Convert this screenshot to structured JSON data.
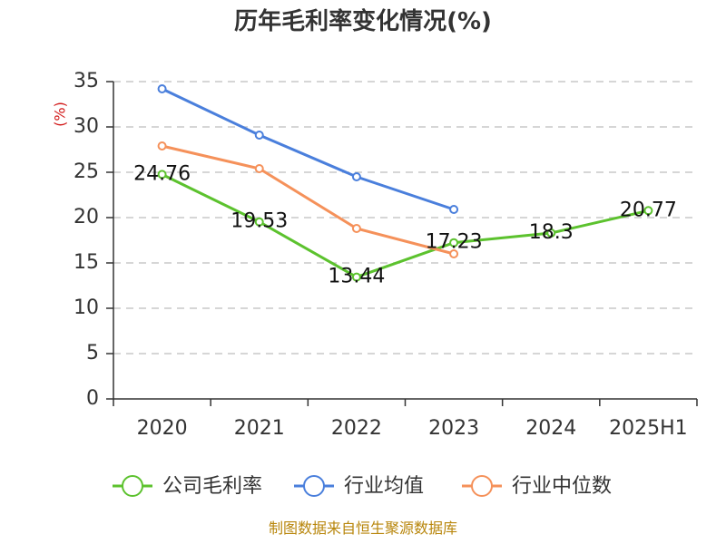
{
  "source_text": "制图数据来自恒生聚源数据库",
  "chart_data": {
    "type": "line",
    "title": "历年毛利率变化情况(%)",
    "xlabel": "",
    "ylabel": "(%)",
    "categories": [
      "2020",
      "2021",
      "2022",
      "2023",
      "2024",
      "2025H1"
    ],
    "ylim": [
      0,
      35
    ],
    "yticks": [
      0,
      5,
      10,
      15,
      20,
      25,
      30,
      35
    ],
    "grid": true,
    "legend_position": "bottom",
    "series": [
      {
        "name": "公司毛利率",
        "color": "#5cc22e",
        "values": [
          24.76,
          19.53,
          13.44,
          17.23,
          18.3,
          20.77
        ],
        "labels": [
          "24.76",
          "19.53",
          "13.44",
          "17.23",
          "18.3",
          "20.77"
        ]
      },
      {
        "name": "行业均值",
        "color": "#4a7fdc",
        "values": [
          34.2,
          29.1,
          24.5,
          20.9,
          null,
          null
        ]
      },
      {
        "name": "行业中位数",
        "color": "#f5915a",
        "values": [
          27.9,
          25.4,
          18.8,
          16.0,
          null,
          null
        ]
      }
    ]
  }
}
